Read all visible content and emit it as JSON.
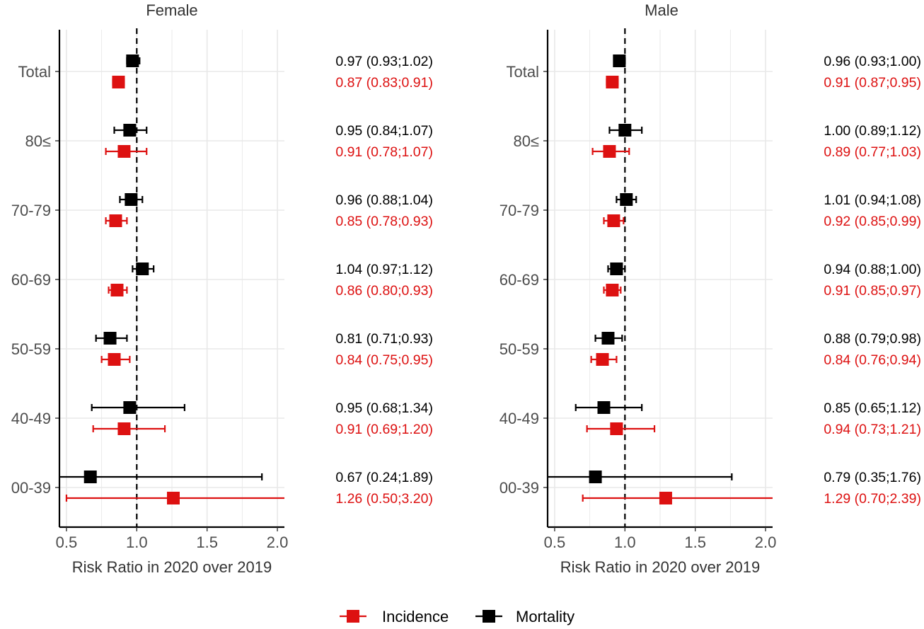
{
  "chart_data": {
    "type": "forest",
    "reference_line": 1.0,
    "xlim": [
      0.45,
      2.05
    ],
    "xticks": [
      0.5,
      1.0,
      1.5,
      2.0
    ],
    "xtick_labels": [
      "0.5",
      "1.0",
      "1.5",
      "2.0"
    ],
    "xlabel": "Risk Ratio in 2020 over 2019",
    "categories": [
      "Total",
      "80≤",
      "70-79",
      "60-69",
      "50-59",
      "40-49",
      "00-39"
    ],
    "series_colors": {
      "Incidence": "#dd1111",
      "Mortality": "#000000"
    },
    "legend": {
      "position": "bottom",
      "entries": [
        {
          "label": "Incidence",
          "color": "#dd1111"
        },
        {
          "label": "Mortality",
          "color": "#000000"
        }
      ]
    },
    "panels": [
      {
        "title": "Female",
        "series": [
          {
            "name": "Mortality",
            "estimates": [
              0.97,
              0.95,
              0.96,
              1.04,
              0.81,
              0.95,
              0.67
            ],
            "lower": [
              0.93,
              0.84,
              0.88,
              0.97,
              0.71,
              0.68,
              0.24
            ],
            "upper": [
              1.02,
              1.07,
              1.04,
              1.12,
              0.93,
              1.34,
              1.89
            ],
            "labels": [
              "0.97 (0.93;1.02)",
              "0.95 (0.84;1.07)",
              "0.96 (0.88;1.04)",
              "1.04 (0.97;1.12)",
              "0.81 (0.71;0.93)",
              "0.95 (0.68;1.34)",
              "0.67 (0.24;1.89)"
            ]
          },
          {
            "name": "Incidence",
            "estimates": [
              0.87,
              0.91,
              0.85,
              0.86,
              0.84,
              0.91,
              1.26
            ],
            "lower": [
              0.83,
              0.78,
              0.78,
              0.8,
              0.75,
              0.69,
              0.5
            ],
            "upper": [
              0.91,
              1.07,
              0.93,
              0.93,
              0.95,
              1.2,
              3.2
            ],
            "labels": [
              "0.87 (0.83;0.91)",
              "0.91 (0.78;1.07)",
              "0.85 (0.78;0.93)",
              "0.86 (0.80;0.93)",
              "0.84 (0.75;0.95)",
              "0.91 (0.69;1.20)",
              "1.26 (0.50;3.20)"
            ]
          }
        ]
      },
      {
        "title": "Male",
        "series": [
          {
            "name": "Mortality",
            "estimates": [
              0.96,
              1.0,
              1.01,
              0.94,
              0.88,
              0.85,
              0.79
            ],
            "lower": [
              0.93,
              0.89,
              0.94,
              0.88,
              0.79,
              0.65,
              0.35
            ],
            "upper": [
              1.0,
              1.12,
              1.08,
              1.0,
              0.98,
              1.12,
              1.76
            ],
            "labels": [
              "0.96 (0.93;1.00)",
              "1.00 (0.89;1.12)",
              "1.01 (0.94;1.08)",
              "0.94 (0.88;1.00)",
              "0.88 (0.79;0.98)",
              "0.85 (0.65;1.12)",
              "0.79 (0.35;1.76)"
            ]
          },
          {
            "name": "Incidence",
            "estimates": [
              0.91,
              0.89,
              0.92,
              0.91,
              0.84,
              0.94,
              1.29
            ],
            "lower": [
              0.87,
              0.77,
              0.85,
              0.85,
              0.76,
              0.73,
              0.7
            ],
            "upper": [
              0.95,
              1.03,
              0.99,
              0.97,
              0.94,
              1.21,
              2.39
            ],
            "labels": [
              "0.91 (0.87;0.95)",
              "0.89 (0.77;1.03)",
              "0.92 (0.85;0.99)",
              "0.91 (0.85;0.97)",
              "0.84 (0.76;0.94)",
              "0.94 (0.73;1.21)",
              "1.29 (0.70;2.39)"
            ]
          }
        ]
      }
    ]
  }
}
